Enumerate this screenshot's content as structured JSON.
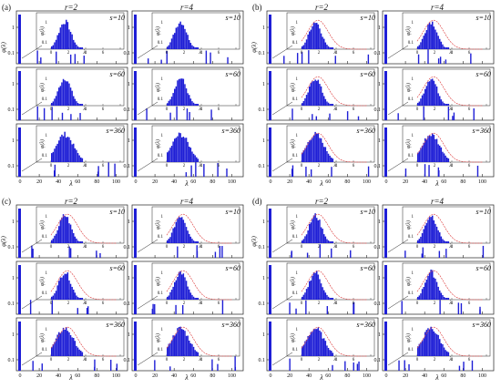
{
  "chart_data": {
    "type": "bar",
    "description": "Eigenvalue spectra phi(lambda) for four groups (a)-(d); each group has columns r=2 and r=4 and rows s=10, s=60, s=360. Each panel shows a large-range histogram with an inset zoom of the bulk (0-8) on log y-axis; red dashed curves indicate a reference density in (b)-(d).",
    "groups": [
      {
        "label": "(a)",
        "curve": false,
        "s10_scale": "small",
        "xticks_outer": [
          0,
          20,
          40,
          60,
          80,
          100
        ]
      },
      {
        "label": "(b)",
        "curve": true,
        "s10_scale": "small",
        "xticks_outer": [
          0,
          20,
          40,
          60,
          80,
          100
        ]
      },
      {
        "label": "(c)",
        "curve": true,
        "s10_scale": "small",
        "xticks_outer": [
          0,
          20,
          40,
          60,
          80,
          100
        ]
      },
      {
        "label": "(d)",
        "curve": true,
        "s10_scale": "small",
        "xticks_outer": [
          0,
          20,
          40,
          60,
          80,
          100
        ]
      }
    ],
    "columns": [
      "r=2",
      "r=4"
    ],
    "rows": [
      "s=10",
      "s=60",
      "s=360"
    ],
    "xlabel": "λ",
    "ylabel": "φ(λ)",
    "inset_xlabel": "λ",
    "inset_ylabel": "φ(λ)",
    "yticks": [
      "1",
      "0.1"
    ],
    "inset_yticks": [
      "1",
      "0.1"
    ],
    "inset_xticks": [
      "0",
      "2",
      "4",
      "6",
      "8"
    ],
    "bulk_bins": [
      0.2,
      0.6,
      1.0,
      1.4,
      1.8,
      2.2,
      2.6,
      3.0
    ],
    "colors": {
      "bars": "#1f1fd6",
      "curve": "#e05050",
      "axes": "#222222"
    }
  }
}
